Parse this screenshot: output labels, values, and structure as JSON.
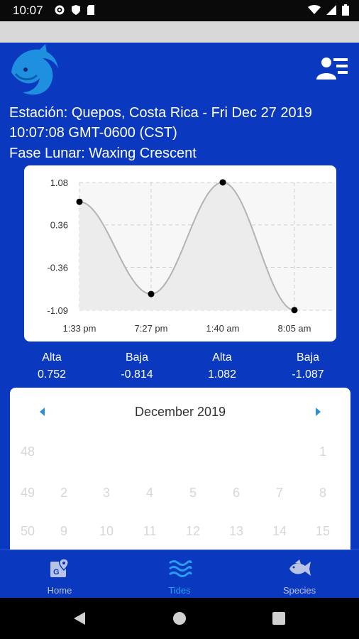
{
  "status_bar": {
    "time": "10:07",
    "icons": [
      "gear-icon",
      "shield-icon",
      "sd-card-icon",
      "wifi-icon",
      "signal-icon",
      "battery-icon"
    ]
  },
  "header": {
    "station": "Estación: Quepos, Costa Rica - Fri Dec 27 2019 10:07:08 GMT-0600 (CST)",
    "moon_phase": "Fase Lunar: Waxing Crescent"
  },
  "chart_data": {
    "type": "line",
    "x": [
      "1:33 pm",
      "7:27 pm",
      "1:40 am",
      "8:05 am"
    ],
    "values": [
      0.752,
      -0.814,
      1.082,
      -1.087
    ],
    "y_ticks": [
      "1.08",
      "0.36",
      "-0.36",
      "-1.09"
    ],
    "ylim": [
      -1.09,
      1.08
    ],
    "grid": true,
    "colors": {
      "area": "#ececec",
      "line": "#b3b3b3",
      "point": "#000000"
    }
  },
  "tides": [
    {
      "type": "Alta",
      "value": "0.752"
    },
    {
      "type": "Baja",
      "value": "-0.814"
    },
    {
      "type": "Alta",
      "value": "1.082"
    },
    {
      "type": "Baja",
      "value": "-1.087"
    }
  ],
  "calendar": {
    "month": "December 2019",
    "rows": [
      [
        "48",
        "",
        "",
        "",
        "",
        "",
        "",
        "1"
      ],
      [
        "49",
        "2",
        "3",
        "4",
        "5",
        "6",
        "7",
        "8"
      ],
      [
        "50",
        "9",
        "10",
        "11",
        "12",
        "13",
        "14",
        "15"
      ]
    ]
  },
  "nav": {
    "items": [
      {
        "label": "Home",
        "icon": "map-icon",
        "active": false
      },
      {
        "label": "Tides",
        "icon": "waves-icon",
        "active": true
      },
      {
        "label": "Species",
        "icon": "fish-icon",
        "active": false
      }
    ]
  },
  "colors": {
    "brand": "#0a39c0",
    "accent": "#2a9df0"
  }
}
